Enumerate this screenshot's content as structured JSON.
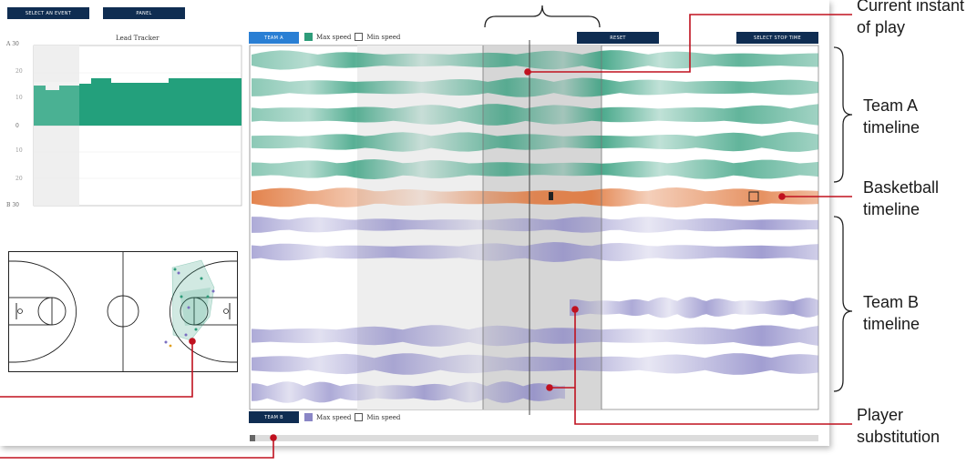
{
  "nav": {
    "select_event": "SELECT AN EVENT",
    "panel": "PANEL"
  },
  "lead_tracker": {
    "title": "Lead Tracker",
    "top_label": "A  30",
    "bottom_label": "B  30",
    "zero_label": "0",
    "faint_ticks": [
      "20",
      "10",
      "10",
      "20"
    ]
  },
  "timeline_panel": {
    "team_a_button": "TEAM A",
    "team_b_button": "TEAM B",
    "reset_button": "RESET",
    "select_stop_time_button": "SELECT STOP TIME",
    "max_speed": "Max speed",
    "min_speed": "Min speed"
  },
  "annotations": {
    "current_instant_1": "Current instant",
    "current_instant_2": "of play",
    "team_a_1": "Team A",
    "team_a_2": "timeline",
    "basketball_1": "Basketball",
    "basketball_2": "timeline",
    "team_b_1": "Team B",
    "team_b_2": "timeline",
    "substitution_1": "Player",
    "substitution_2": "substitution"
  },
  "colors": {
    "nav": "#0f2d52",
    "team_a_button": "#2a7fd4",
    "team_a": "#2e9c7a",
    "ball": "#e0763a",
    "team_b": "#8a86c6",
    "annotation_line": "#c0111f"
  },
  "icons": [
    "court-diagram",
    "ball-marker-icon",
    "stop-marker-icon",
    "playhead-marker-icon"
  ]
}
